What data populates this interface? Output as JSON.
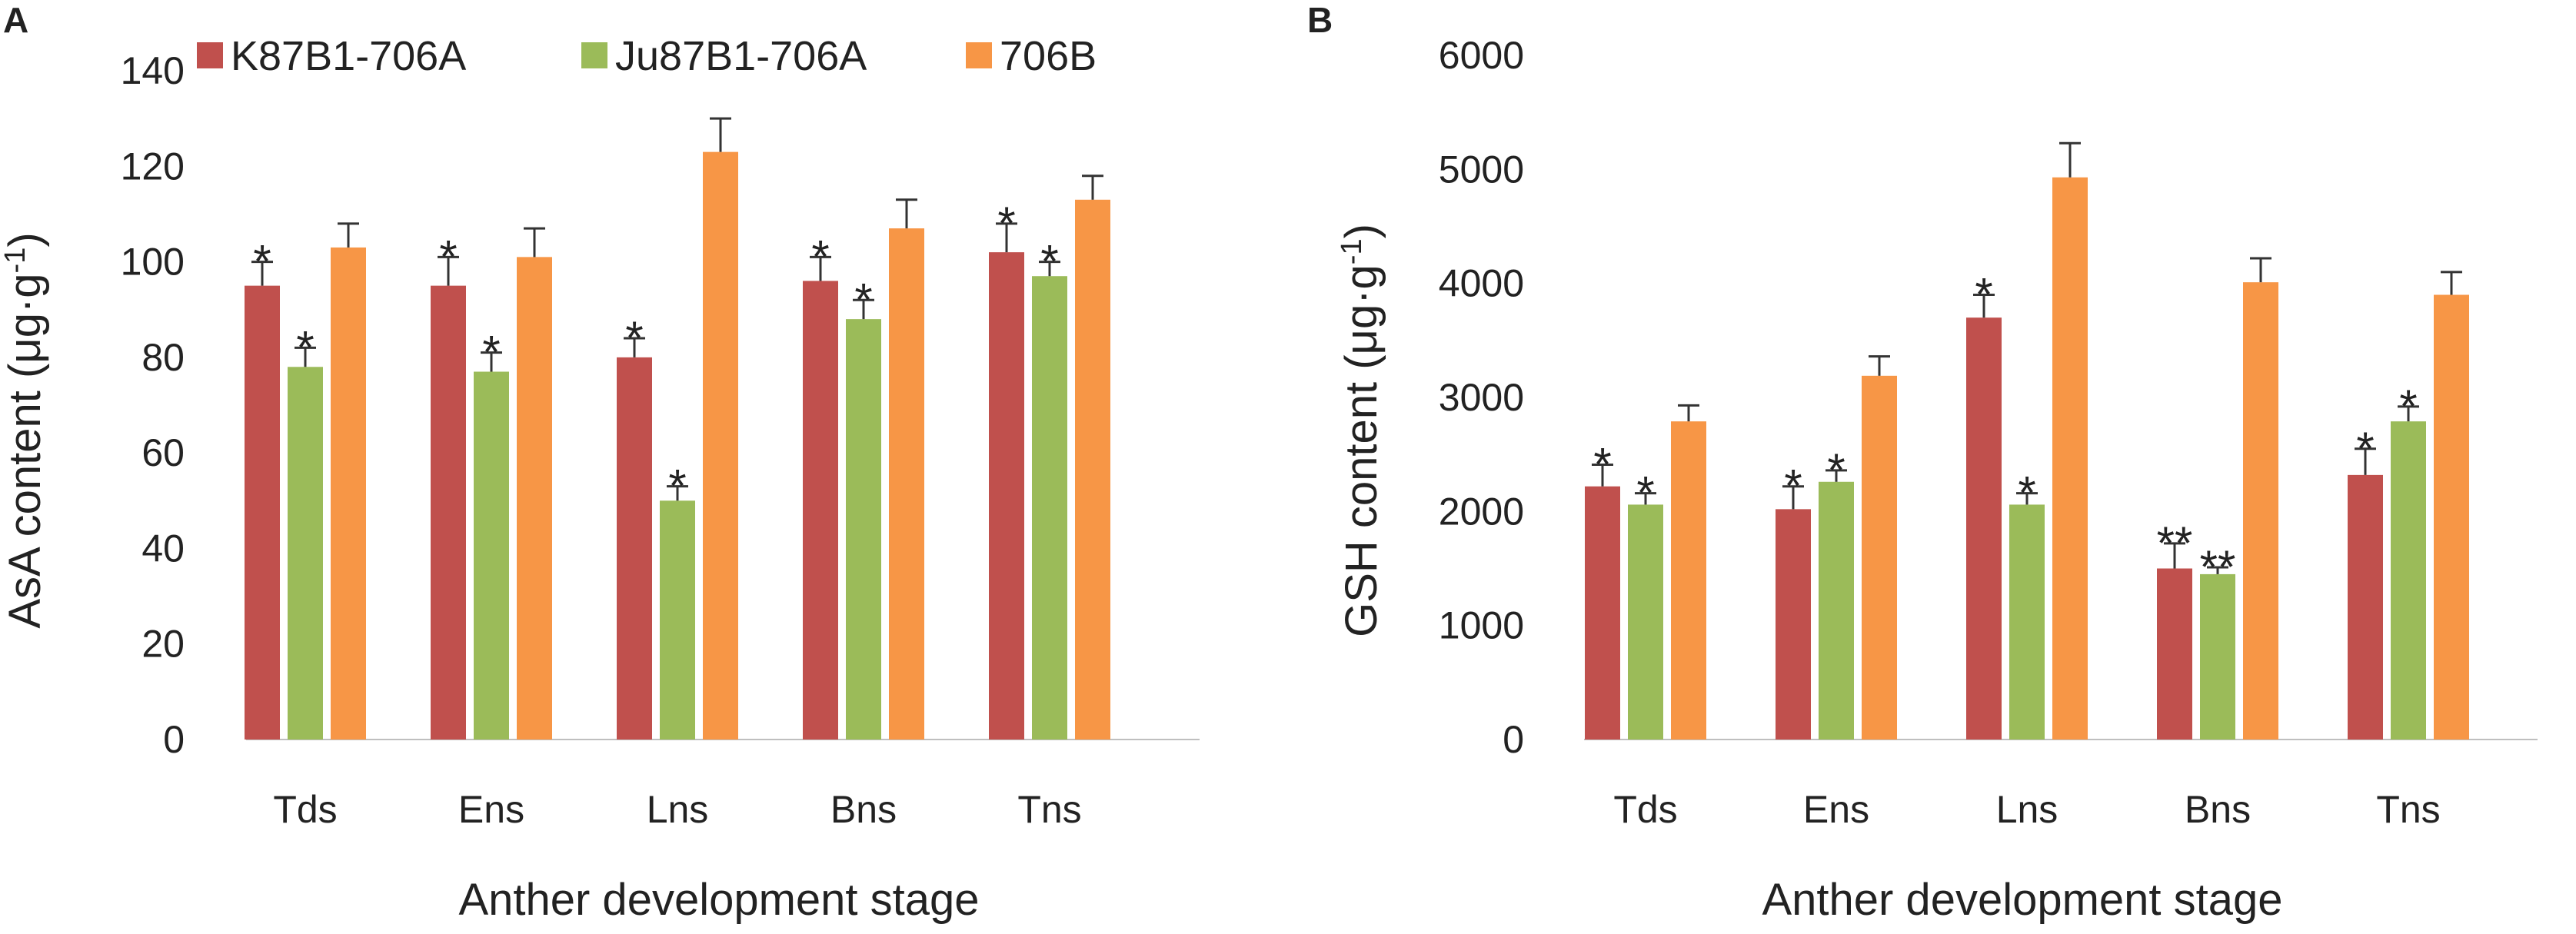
{
  "series_colors": [
    "#C0504D",
    "#9BBB59",
    "#F79646"
  ],
  "error_bar_color": "#333333",
  "legend": [
    "K87B1-706A",
    "Ju87B1-706A",
    "706B"
  ],
  "chart_data": [
    {
      "panel": "A",
      "type": "bar",
      "categories": [
        "Tds",
        "Ens",
        "Lns",
        "Bns",
        "Tns"
      ],
      "series": [
        {
          "name": "K87B1-706A",
          "values": [
            95,
            95,
            80,
            96,
            102
          ],
          "errors": [
            5,
            6,
            4,
            5,
            6
          ],
          "marks": [
            "*",
            "*",
            "*",
            "*",
            "*"
          ]
        },
        {
          "name": "Ju87B1-706A",
          "values": [
            78,
            77,
            50,
            88,
            97
          ],
          "errors": [
            4,
            4,
            3,
            4,
            3
          ],
          "marks": [
            "*",
            "*",
            "*",
            "*",
            "*"
          ]
        },
        {
          "name": "706B",
          "values": [
            103,
            101,
            123,
            107,
            113
          ],
          "errors": [
            5,
            6,
            7,
            6,
            5
          ],
          "marks": [
            "",
            "",
            "",
            "",
            ""
          ]
        }
      ],
      "ylim": [
        0,
        140
      ],
      "yticks": [
        0,
        20,
        40,
        60,
        80,
        100,
        120,
        140
      ],
      "ylabel": "AsA content (μg·g",
      "ylabel_sup": "-1",
      "ylabel_close": ")",
      "xlabel": "Anther development stage",
      "legend_position": "top"
    },
    {
      "panel": "B",
      "type": "bar",
      "categories": [
        "Tds",
        "Ens",
        "Lns",
        "Bns",
        "Tns"
      ],
      "series": [
        {
          "name": "K87B1-706A",
          "values": [
            2220,
            2020,
            3700,
            1500,
            2320
          ],
          "errors": [
            190,
            200,
            200,
            220,
            230
          ],
          "marks": [
            "*",
            "*",
            "*",
            "**",
            "*"
          ]
        },
        {
          "name": "Ju87B1-706A",
          "values": [
            2060,
            2260,
            2060,
            1450,
            2790
          ],
          "errors": [
            100,
            100,
            100,
            60,
            130
          ],
          "marks": [
            "*",
            "*",
            "*",
            "**",
            "*"
          ]
        },
        {
          "name": "706B",
          "values": [
            2790,
            3190,
            4930,
            4010,
            3900
          ],
          "errors": [
            140,
            170,
            300,
            210,
            200
          ],
          "marks": [
            "",
            "",
            "",
            "",
            ""
          ]
        }
      ],
      "ylim": [
        0,
        6000
      ],
      "yticks": [
        0,
        1000,
        2000,
        3000,
        4000,
        5000,
        6000
      ],
      "ylabel": "GSH  content (μg·g",
      "ylabel_sup": "-1",
      "ylabel_close": ")",
      "xlabel": "Anther development stage",
      "legend_position": "none"
    }
  ]
}
